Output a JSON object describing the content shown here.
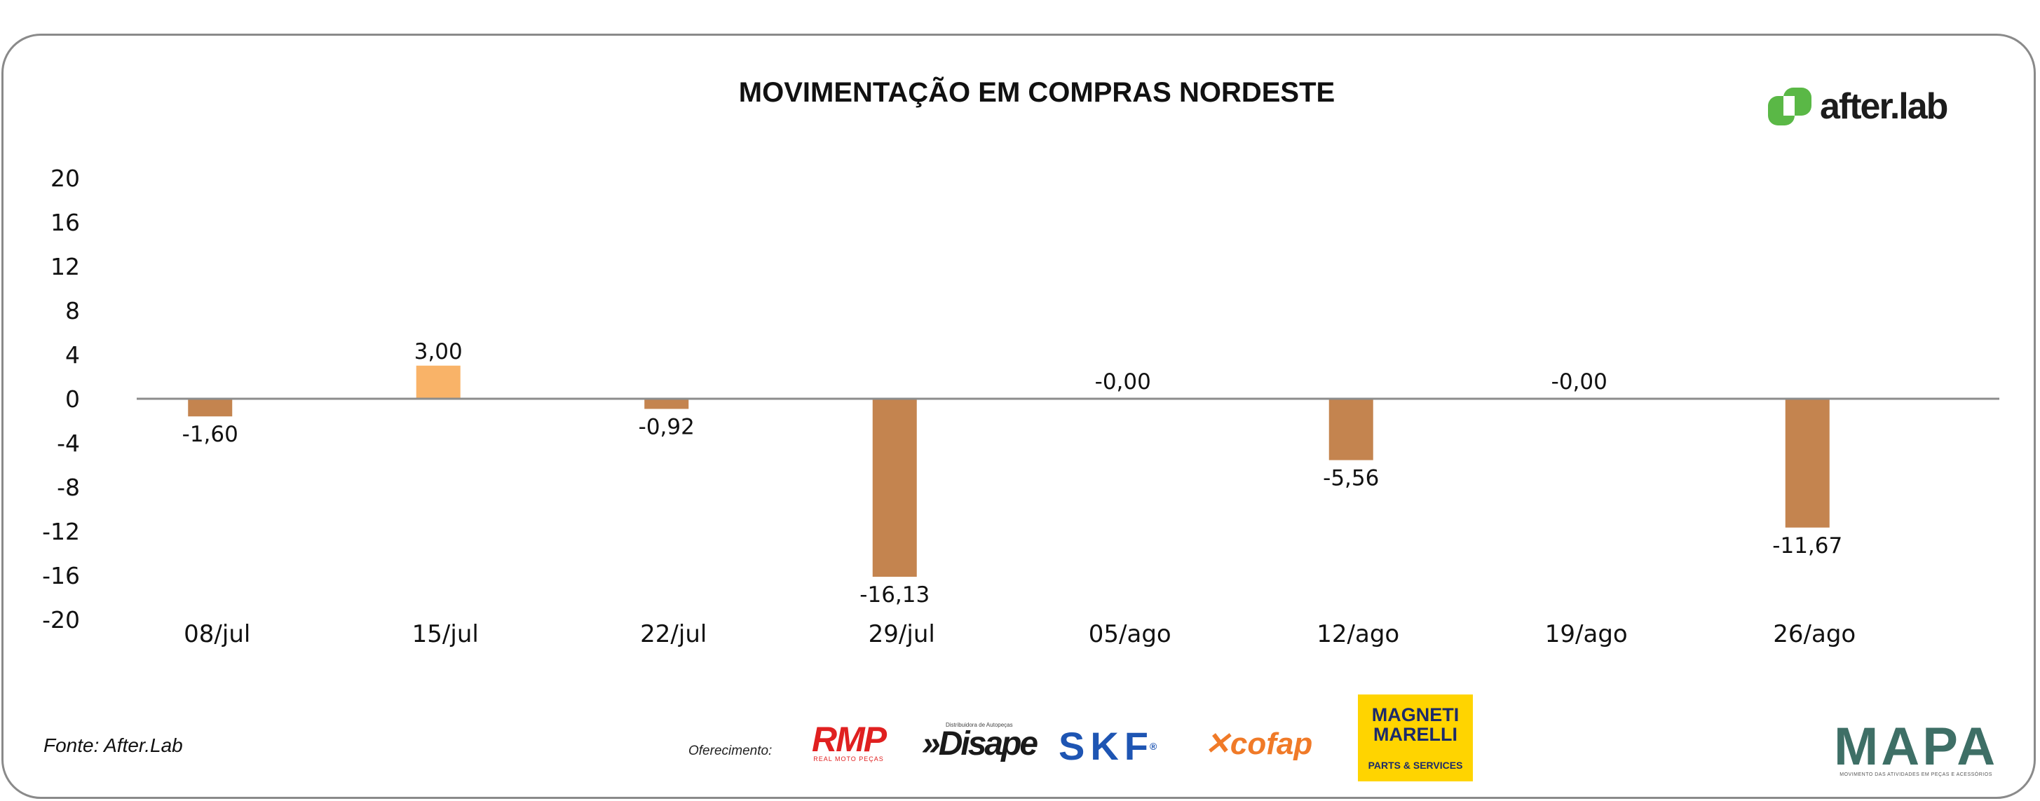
{
  "chart_data": {
    "type": "bar",
    "title": "MOVIMENTAÇÃO EM COMPRAS NORDESTE",
    "xlabel": "",
    "ylabel": "",
    "categories": [
      "08/jul",
      "15/jul",
      "22/jul",
      "29/jul",
      "05/ago",
      "12/ago",
      "19/ago",
      "26/ago"
    ],
    "values": [
      -1.6,
      3.0,
      -0.92,
      -16.13,
      -0.0,
      -5.56,
      -0.0,
      -11.67
    ],
    "data_labels": [
      "-1,60",
      "3,00",
      "-0,92",
      "-16,13",
      "-0,00",
      "-5,56",
      "-0,00",
      "-11,67"
    ],
    "ylim": [
      -20,
      20
    ],
    "yticks": [
      20,
      16,
      12,
      8,
      4,
      0,
      -4,
      -8,
      -12,
      -16,
      -20
    ],
    "grid": false,
    "legend": "none",
    "colors": {
      "negative_bar": "#c4844f",
      "positive_bar": "#f9b368",
      "zero_line": "#8c8c8c"
    }
  },
  "footer": {
    "source": "Fonte: After.Lab",
    "offered_by": "Oferecimento:"
  },
  "brands": {
    "afterlab": "after.lab",
    "rmp": "RMP",
    "rmp_sub": "REAL MOTO PEÇAS",
    "disape": "»Disape",
    "disape_sub": "Distribuidora de Autopeças",
    "skf": "SKF",
    "skf_reg": "®",
    "cofap": "✕cofap",
    "magneti_line1": "MAGNETI",
    "magneti_line2": "MARELLI",
    "magneti_sub": "PARTS & SERVICES",
    "mapa": "MAPA",
    "mapa_sub": "MOVIMENTO DAS ATIVIDADES EM PEÇAS E ACESSÓRIOS",
    "brand_green": "#5ab846"
  }
}
